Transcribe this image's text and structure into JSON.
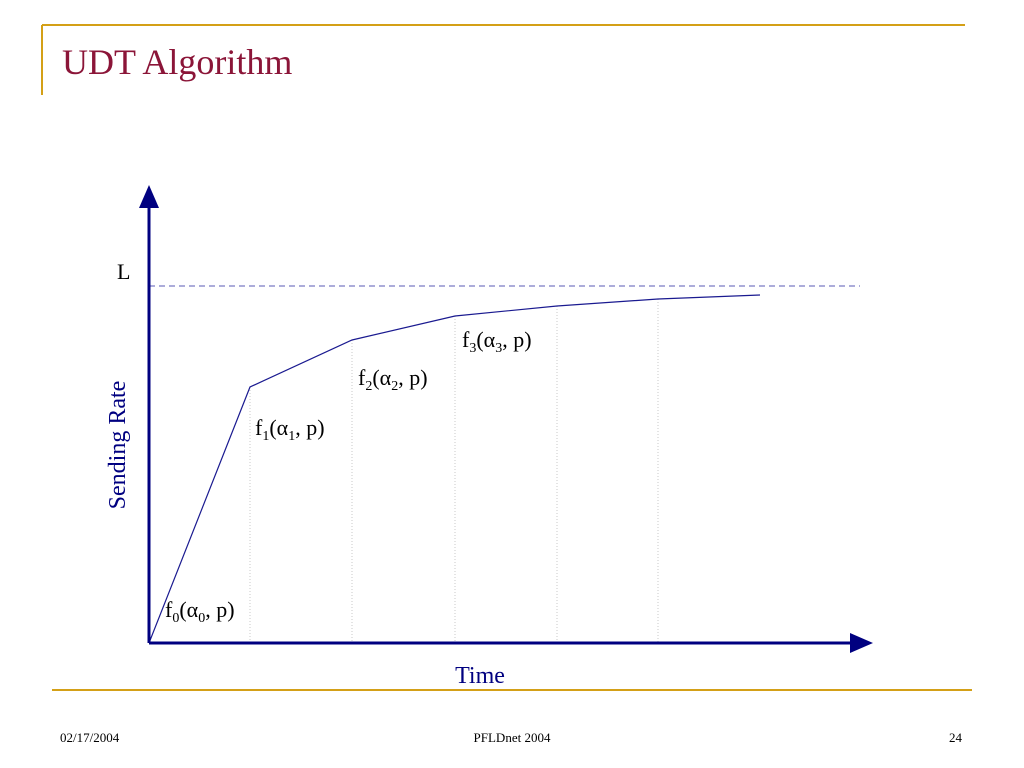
{
  "header": {
    "title": "UDT Algorithm"
  },
  "diagram": {
    "y_axis_label": "Sending Rate",
    "x_axis_label": "Time",
    "limit_label": "L",
    "segments": [
      {
        "label": [
          "f",
          "0",
          "(α",
          "0",
          ", p)"
        ]
      },
      {
        "label": [
          "f",
          "1",
          "(α",
          "1",
          ", p)"
        ]
      },
      {
        "label": [
          "f",
          "2",
          "(α",
          "2",
          ", p)"
        ]
      },
      {
        "label": [
          "f",
          "3",
          "(α",
          "3",
          ", p)"
        ]
      }
    ]
  },
  "footer": {
    "date": "02/17/2004",
    "center": "PFLDnet 2004",
    "page": "24"
  }
}
